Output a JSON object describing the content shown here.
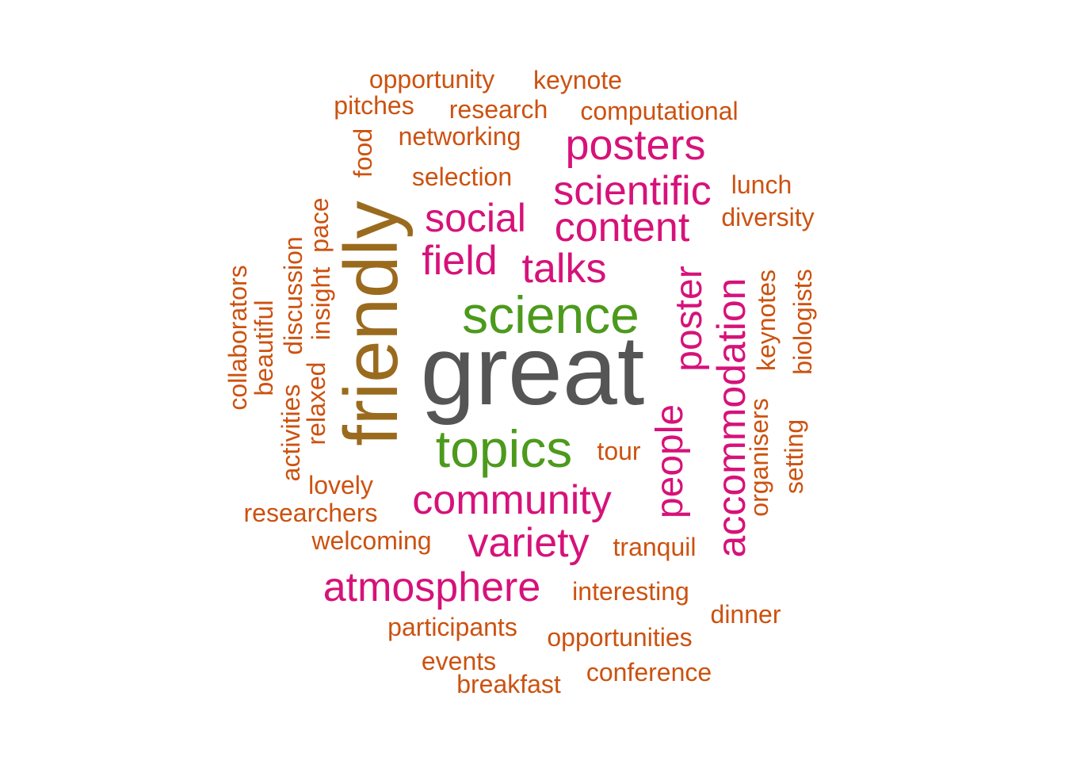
{
  "palette": {
    "top": "#555555",
    "second": "#9A6B1E",
    "third": "#4C9A1C",
    "mid": "#D6127A",
    "low": "#CC5210"
  },
  "words": [
    {
      "text": "great",
      "tier": "top",
      "freq": 100
    },
    {
      "text": "friendly",
      "tier": "second",
      "freq": 75
    },
    {
      "text": "science",
      "tier": "third",
      "freq": 45
    },
    {
      "text": "topics",
      "tier": "third",
      "freq": 45
    },
    {
      "text": "posters",
      "tier": "mid",
      "freq": 30
    },
    {
      "text": "scientific",
      "tier": "mid",
      "freq": 30
    },
    {
      "text": "social",
      "tier": "mid",
      "freq": 30
    },
    {
      "text": "content",
      "tier": "mid",
      "freq": 30
    },
    {
      "text": "field",
      "tier": "mid",
      "freq": 30
    },
    {
      "text": "talks",
      "tier": "mid",
      "freq": 30
    },
    {
      "text": "poster",
      "tier": "mid",
      "freq": 30
    },
    {
      "text": "accommodation",
      "tier": "mid",
      "freq": 30
    },
    {
      "text": "people",
      "tier": "mid",
      "freq": 30
    },
    {
      "text": "community",
      "tier": "mid",
      "freq": 30
    },
    {
      "text": "variety",
      "tier": "mid",
      "freq": 30
    },
    {
      "text": "atmosphere",
      "tier": "mid",
      "freq": 30
    },
    {
      "text": "opportunity",
      "tier": "low",
      "freq": 10
    },
    {
      "text": "keynote",
      "tier": "low",
      "freq": 10
    },
    {
      "text": "pitches",
      "tier": "low",
      "freq": 10
    },
    {
      "text": "research",
      "tier": "low",
      "freq": 10
    },
    {
      "text": "computational",
      "tier": "low",
      "freq": 10
    },
    {
      "text": "networking",
      "tier": "low",
      "freq": 10
    },
    {
      "text": "food",
      "tier": "low",
      "freq": 10
    },
    {
      "text": "selection",
      "tier": "low",
      "freq": 10
    },
    {
      "text": "lunch",
      "tier": "low",
      "freq": 10
    },
    {
      "text": "diversity",
      "tier": "low",
      "freq": 10
    },
    {
      "text": "pace",
      "tier": "low",
      "freq": 10
    },
    {
      "text": "insight",
      "tier": "low",
      "freq": 10
    },
    {
      "text": "discussion",
      "tier": "low",
      "freq": 10
    },
    {
      "text": "relaxed",
      "tier": "low",
      "freq": 10
    },
    {
      "text": "activities",
      "tier": "low",
      "freq": 10
    },
    {
      "text": "beautiful",
      "tier": "low",
      "freq": 10
    },
    {
      "text": "collaborators",
      "tier": "low",
      "freq": 10
    },
    {
      "text": "keynotes",
      "tier": "low",
      "freq": 10
    },
    {
      "text": "biologists",
      "tier": "low",
      "freq": 10
    },
    {
      "text": "organisers",
      "tier": "low",
      "freq": 10
    },
    {
      "text": "setting",
      "tier": "low",
      "freq": 10
    },
    {
      "text": "tour",
      "tier": "low",
      "freq": 10
    },
    {
      "text": "lovely",
      "tier": "low",
      "freq": 10
    },
    {
      "text": "researchers",
      "tier": "low",
      "freq": 10
    },
    {
      "text": "welcoming",
      "tier": "low",
      "freq": 10
    },
    {
      "text": "tranquil",
      "tier": "low",
      "freq": 10
    },
    {
      "text": "interesting",
      "tier": "low",
      "freq": 10
    },
    {
      "text": "dinner",
      "tier": "low",
      "freq": 10
    },
    {
      "text": "participants",
      "tier": "low",
      "freq": 10
    },
    {
      "text": "opportunities",
      "tier": "low",
      "freq": 10
    },
    {
      "text": "events",
      "tier": "low",
      "freq": 10
    },
    {
      "text": "conference",
      "tier": "low",
      "freq": 10
    },
    {
      "text": "breakfast",
      "tier": "low",
      "freq": 10
    }
  ]
}
